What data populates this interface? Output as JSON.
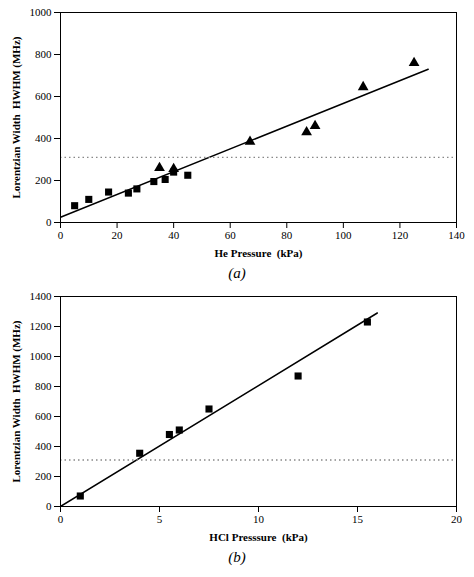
{
  "chart_data": [
    {
      "type": "scatter",
      "caption": "(a)",
      "xlabel": "He Pressure  (kPa)",
      "ylabel": "Lorentzian Width  HWHM (MHz)",
      "xlim": [
        0,
        140
      ],
      "ylim": [
        0,
        1000
      ],
      "xticks": [
        0,
        20,
        40,
        60,
        80,
        100,
        120,
        140
      ],
      "yticks": [
        0,
        200,
        400,
        600,
        800,
        1000
      ],
      "series": [
        {
          "type": "line",
          "line_style": "solid",
          "color": "#000000",
          "x": [
            0,
            130
          ],
          "values": [
            25,
            730
          ]
        },
        {
          "type": "hline",
          "line_style": "dotted",
          "color": "#888888",
          "values": [
            310
          ]
        },
        {
          "type": "scatter",
          "marker": "square",
          "color": "#000000",
          "x": [
            5,
            10,
            17,
            24,
            27,
            33,
            37,
            40,
            45
          ],
          "values": [
            80,
            110,
            145,
            140,
            160,
            195,
            205,
            240,
            225
          ]
        },
        {
          "type": "scatter",
          "marker": "triangle",
          "color": "#000000",
          "x": [
            35,
            40,
            67,
            87,
            90,
            107,
            125
          ],
          "values": [
            260,
            255,
            385,
            430,
            460,
            645,
            760
          ]
        }
      ]
    },
    {
      "type": "scatter",
      "caption": "(b)",
      "xlabel": "HCl Presssure  (kPa)",
      "ylabel": "Lorentzian Width  HWHM (MHz)",
      "xlim": [
        0,
        20
      ],
      "ylim": [
        0,
        1400
      ],
      "xticks": [
        0,
        5,
        10,
        15,
        20
      ],
      "yticks": [
        0,
        200,
        400,
        600,
        800,
        1000,
        1200,
        1400
      ],
      "series": [
        {
          "type": "line",
          "line_style": "solid",
          "color": "#000000",
          "x": [
            0,
            16
          ],
          "values": [
            0,
            1290
          ]
        },
        {
          "type": "hline",
          "line_style": "dotted",
          "color": "#888888",
          "values": [
            310
          ]
        },
        {
          "type": "scatter",
          "marker": "square",
          "color": "#000000",
          "x": [
            1,
            4,
            5.5,
            6,
            7.5,
            12,
            15.5
          ],
          "values": [
            70,
            355,
            480,
            510,
            650,
            870,
            1230
          ]
        }
      ]
    }
  ]
}
